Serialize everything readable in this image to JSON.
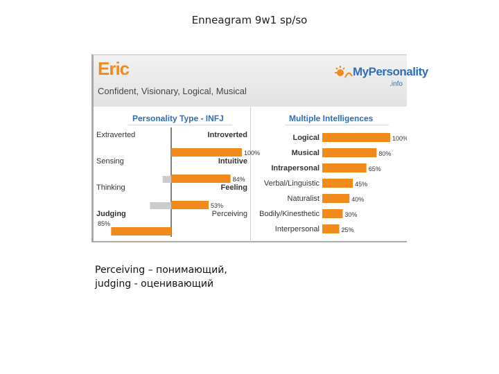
{
  "slide": {
    "title": "Enneagram 9w1 sp/so",
    "caption_lines": [
      "Perceiving – понимающий,",
      "judging - оценивающий"
    ]
  },
  "profile": {
    "name": "Eric",
    "traits": "Confident, Visionary, Logical, Musical",
    "logo_text": "MyPersonality",
    "logo_sub": ".info"
  },
  "colors": {
    "accent": "#f08a1c",
    "bar_gray": "#cccccc",
    "title_blue": "#2d6fb7"
  },
  "chart_data": [
    {
      "type": "bar",
      "title": "Personality Type - INFJ",
      "orientation": "diverging-horizontal",
      "rows": [
        {
          "left_label": "Extraverted",
          "right_label": "Introverted",
          "dominant": "right",
          "value": 100,
          "value_label": "100%"
        },
        {
          "left_label": "Sensing",
          "right_label": "Intuitive",
          "dominant": "right",
          "value": 84,
          "value_label": "84%"
        },
        {
          "left_label": "Thinking",
          "right_label": "Feeling",
          "dominant": "right",
          "value": 53,
          "value_label": "53%"
        },
        {
          "left_label": "Judging",
          "right_label": "Perceiving",
          "dominant": "left",
          "value": 85,
          "value_label": "85%"
        }
      ],
      "gray_context_values": [
        0,
        12,
        30,
        0
      ]
    },
    {
      "type": "bar",
      "title": "Multiple Intelligences",
      "orientation": "horizontal",
      "categories": [
        "Logical",
        "Musical",
        "Intrapersonal",
        "Verbal/Linguistic",
        "Naturalist",
        "Bodily/Kinesthetic",
        "Interpersonal"
      ],
      "values": [
        100,
        80,
        65,
        45,
        40,
        30,
        25
      ],
      "value_labels": [
        "100%",
        "80%",
        "65%",
        "45%",
        "40%",
        "30%",
        "25%"
      ],
      "bold": [
        true,
        true,
        true,
        false,
        false,
        false,
        false
      ],
      "xlim": [
        0,
        100
      ]
    }
  ]
}
